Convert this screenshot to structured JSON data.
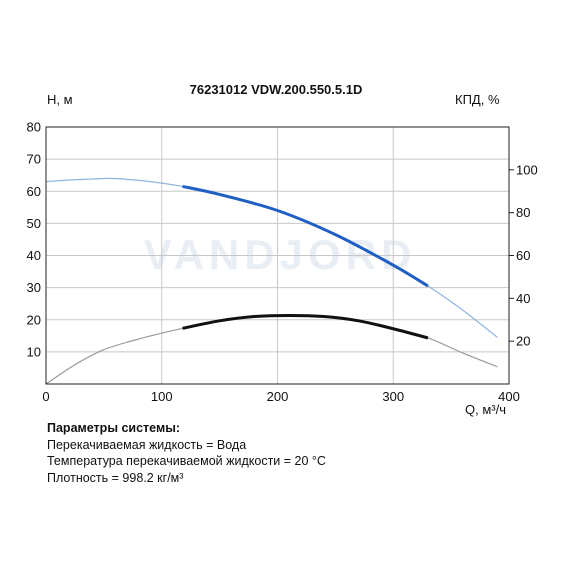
{
  "chart_data": {
    "type": "line",
    "title": "76231012 VDW.200.550.5.1D",
    "ylabel_left": "Н, м",
    "ylabel_right": "КПД, %",
    "xlabel": "Q, м³/ч",
    "xlim": [
      0,
      400
    ],
    "ylim_left": [
      0,
      80
    ],
    "ylim_right": [
      0,
      120
    ],
    "grid": true,
    "legend": "none",
    "x_ticks": [
      "0",
      "100",
      "200",
      "300",
      "400"
    ],
    "y_left_ticks": [
      "10",
      "20",
      "30",
      "40",
      "50",
      "60",
      "70",
      "80"
    ],
    "y_right_ticks": [
      "20",
      "40",
      "60",
      "80",
      "100"
    ],
    "watermark": "VANDJORD",
    "colors": {
      "head": "#1f5fc4",
      "head_light": "#8fb4e0",
      "efficiency": "#111111",
      "efficiency_light": "#999999",
      "grid": "#c8c8c8"
    },
    "series": [
      {
        "axis": "left",
        "x": [
          0,
          20,
          40,
          55,
          70,
          90,
          118,
          150,
          200,
          250,
          300,
          330,
          360,
          390
        ],
        "y": [
          63,
          63.5,
          63.8,
          64,
          63.7,
          63,
          61.5,
          59,
          54,
          46.5,
          37,
          30.5,
          23,
          14.5
        ],
        "operating_range": [
          118,
          330
        ]
      },
      {
        "axis": "right",
        "x": [
          0,
          25,
          50,
          80,
          118,
          150,
          180,
          210,
          240,
          270,
          300,
          330,
          360,
          390
        ],
        "y": [
          0,
          9,
          16,
          21,
          26,
          29.5,
          31.5,
          32,
          31.5,
          29.5,
          25.8,
          21.5,
          14.5,
          8
        ],
        "operating_range": [
          118,
          330
        ]
      }
    ]
  },
  "params": {
    "heading": "Параметры системы:",
    "lines": [
      "Перекачиваемая жидкость = Вода",
      "Температура перекачиваемой жидкости = 20 °C",
      "Плотность = 998.2 кг/м³"
    ]
  }
}
